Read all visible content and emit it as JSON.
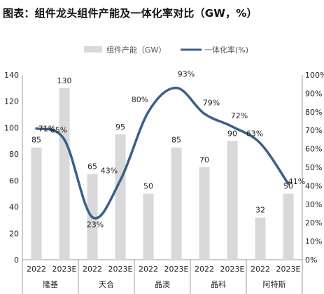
{
  "title": "图表：组件龙头组件产能及一体化率对比（GW，%）",
  "chart_data": {
    "type": "bar-line-combo",
    "title": "图表：组件龙头组件产能及一体化率对比（GW，%）",
    "groups": [
      "隆基",
      "天合",
      "晶澳",
      "晶科",
      "阿特斯"
    ],
    "categories": [
      "2022",
      "2023E",
      "2022",
      "2023E",
      "2022",
      "2023E",
      "2022",
      "2023E",
      "2022",
      "2023E"
    ],
    "series": [
      {
        "name": "组件产能（GW）",
        "type": "bar",
        "axis": "left",
        "color": "#d9d9d9",
        "values": [
          85,
          130,
          65,
          95,
          50,
          85,
          70,
          90,
          32,
          50
        ],
        "labels": [
          "85",
          "130",
          "65",
          "95",
          "50",
          "85",
          "70",
          "90",
          "32",
          "50"
        ]
      },
      {
        "name": "一体化率(%)",
        "type": "line",
        "axis": "right",
        "color": "#3c5f8a",
        "smooth": true,
        "values": [
          71,
          65,
          23,
          43,
          80,
          93,
          79,
          72,
          63,
          41
        ],
        "labels": [
          "71%",
          "65%",
          "23%",
          "43%",
          "80%",
          "93%",
          "79%",
          "72%",
          "63%",
          "41%"
        ]
      }
    ],
    "y_left": {
      "min": 0,
      "max": 140,
      "ticks": [
        "0",
        "20",
        "40",
        "60",
        "80",
        "100",
        "120",
        "140"
      ]
    },
    "y_right": {
      "min": 0,
      "max": 100,
      "ticks": [
        "0%",
        "10%",
        "20%",
        "30%",
        "40%",
        "50%",
        "60%",
        "70%",
        "80%",
        "90%",
        "100%"
      ]
    },
    "legend_position": "top-center",
    "grid": false
  }
}
